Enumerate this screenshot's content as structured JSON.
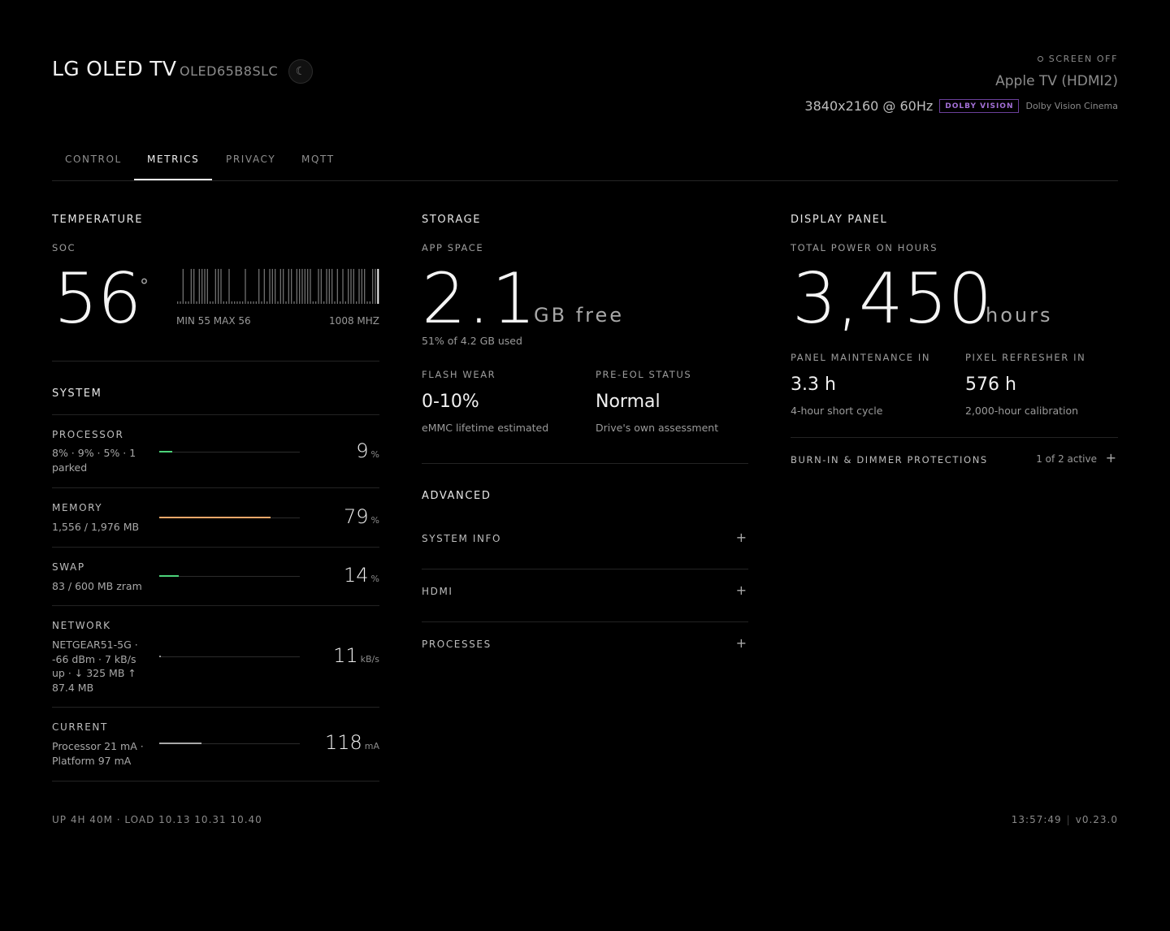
{
  "header": {
    "title": "LG OLED TV",
    "model": "OLED65B8SLC",
    "theme_icon": "moon-icon",
    "screen_off": "SCREEN OFF",
    "source": "Apple TV (HDMI2)",
    "resolution": "3840x2160 @ 60Hz",
    "hdr_badge": "DOLBY VISION",
    "picture_mode": "Dolby Vision Cinema"
  },
  "tabs": [
    {
      "label": "CONTROL",
      "active": false
    },
    {
      "label": "METRICS",
      "active": true
    },
    {
      "label": "PRIVACY",
      "active": false
    },
    {
      "label": "MQTT",
      "active": false
    }
  ],
  "temperature": {
    "heading": "TEMPERATURE",
    "label": "SOC",
    "value": "56",
    "degree": "°",
    "min_max": "MIN 55 MAX 56",
    "frequency": "1008 MHZ",
    "history": [
      55,
      55,
      56,
      55,
      55,
      56,
      56,
      55,
      56,
      56,
      56,
      56,
      55,
      55,
      56,
      56,
      56,
      55,
      55,
      56,
      55,
      55,
      55,
      55,
      55,
      56,
      55,
      55,
      55,
      55,
      56,
      55,
      56,
      55,
      56,
      56,
      56,
      55,
      56,
      56,
      55,
      56,
      56,
      55,
      56,
      56,
      56,
      56,
      56,
      56,
      55,
      55,
      56,
      56,
      55,
      56,
      56,
      56,
      55,
      56,
      55,
      56,
      55,
      56,
      56,
      56,
      55,
      56,
      56,
      56,
      55,
      55,
      56,
      56,
      56
    ]
  },
  "system": {
    "heading": "SYSTEM",
    "rows": [
      {
        "label": "PROCESSOR",
        "detail": "8% · 9% · 5% · 1 parked",
        "value": "9",
        "unit": "%",
        "fill": 0.09,
        "color": "#4cd37a"
      },
      {
        "label": "MEMORY",
        "detail": "1,556 / 1,976 MB",
        "value": "79",
        "unit": "%",
        "fill": 0.79,
        "color": "#f3a86a"
      },
      {
        "label": "SWAP",
        "detail": "83 / 600 MB zram",
        "value": "14",
        "unit": "%",
        "fill": 0.14,
        "color": "#4cd37a"
      },
      {
        "label": "NETWORK",
        "detail": "NETGEAR51-5G · -66 dBm · 7 kB/s up · ↓ 325 MB ↑ 87.4 MB",
        "value": "11",
        "unit": "kB/s",
        "fill": 0.01,
        "color": "#9a9a9a"
      },
      {
        "label": "CURRENT",
        "detail": "Processor 21 mA · Platform 97 mA",
        "value": "118",
        "unit": "mA",
        "fill": 0.3,
        "color": "#a8a8a8"
      }
    ]
  },
  "storage": {
    "heading": "STORAGE",
    "app_space_label": "APP SPACE",
    "app_space_value": "2.1",
    "app_space_unit": "GB free",
    "app_space_sub": "51% of 4.2 GB used",
    "flash_wear_label": "FLASH WEAR",
    "flash_wear_value": "0-10%",
    "flash_wear_sub": "eMMC lifetime estimated",
    "pre_eol_label": "PRE-EOL STATUS",
    "pre_eol_value": "Normal",
    "pre_eol_sub": "Drive's own assessment"
  },
  "advanced": {
    "heading": "ADVANCED",
    "items": [
      {
        "label": "SYSTEM INFO",
        "icon": "plus-icon"
      },
      {
        "label": "HDMI",
        "icon": "plus-icon"
      },
      {
        "label": "PROCESSES",
        "icon": "plus-icon"
      }
    ]
  },
  "display_panel": {
    "heading": "DISPLAY PANEL",
    "power_on_label": "TOTAL POWER ON HOURS",
    "power_on_value": "3,450",
    "power_on_unit": "hours",
    "maintenance_label": "PANEL MAINTENANCE IN",
    "maintenance_value": "3.3 h",
    "maintenance_sub": "4-hour short cycle",
    "refresher_label": "PIXEL REFRESHER IN",
    "refresher_value": "576 h",
    "refresher_sub": "2,000-hour calibration",
    "protections_label": "BURN-IN & DIMMER PROTECTIONS",
    "protections_status": "1 of 2 active",
    "protections_icon": "plus-icon"
  },
  "footer": {
    "uptime": "UP 4H 40M · LOAD 10.13 10.31 10.40",
    "time": "13:57:49",
    "version": "v0.23.0"
  }
}
